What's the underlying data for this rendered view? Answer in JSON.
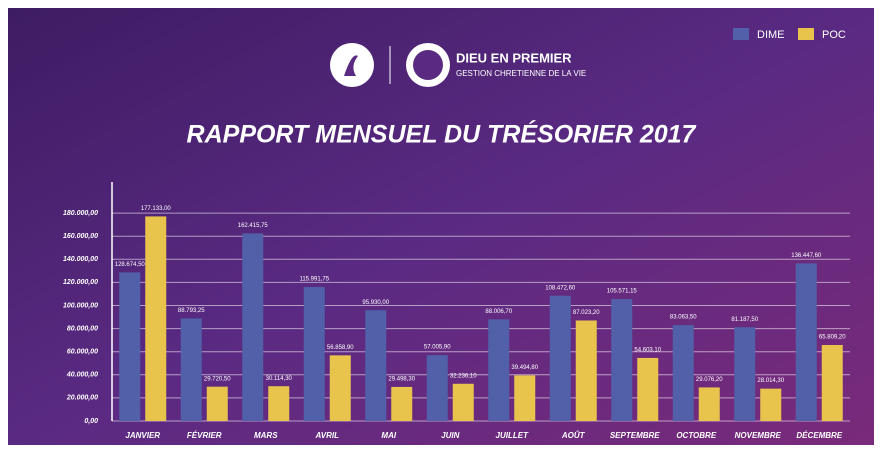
{
  "chart_data": {
    "type": "bar",
    "title": "RAPPORT MENSUEL DU TRÉSORIER 2017",
    "annotations": [
      "DIEU EN PREMIER",
      "GESTION CHRETIENNE DE LA VIE"
    ],
    "categories": [
      "JANVIER",
      "FÉVRIER",
      "MARS",
      "AVRIL",
      "MAI",
      "JUIN",
      "JUILLET",
      "AOÛT",
      "SEPTEMBRE",
      "OCTOBRE",
      "NOVEMBRE",
      "DÉCEMBRE"
    ],
    "series": [
      {
        "name": "DIME",
        "color": "#5160a8",
        "values": [
          128674.5,
          88793.25,
          162415.75,
          115991.75,
          95930,
          57005.9,
          88006.7,
          108472.6,
          105571.15,
          83063.5,
          81187.5,
          136447.6
        ],
        "value_labels": [
          "128.674,50",
          "88.793,25",
          "162.415,75",
          "115.991,75",
          "95.930,00",
          "57.005,90",
          "88.006,70",
          "108.472,60",
          "105.571,15",
          "83.063,50",
          "81.187,50",
          "136.447,60"
        ]
      },
      {
        "name": "POC",
        "color": "#e9c44d",
        "values": [
          177133,
          29720.5,
          30114.3,
          56858.9,
          29498.3,
          32236.1,
          39494.8,
          87023.2,
          54603.1,
          29076.2,
          28014.3,
          65809.2
        ],
        "value_labels": [
          "177.133,00",
          "29.720,50",
          "30.114,30",
          "56.858,90",
          "29.498,30",
          "32.236,10",
          "39.494,80",
          "87.023,20",
          "54.603,10",
          "29.076,20",
          "28.014,30",
          "65.809,20"
        ]
      }
    ],
    "ylim": [
      0,
      200000
    ],
    "yticks": [
      {
        "value": 0,
        "label": "0,00"
      },
      {
        "value": 20000,
        "label": "20.000,00"
      },
      {
        "value": 40000,
        "label": "40.000,00"
      },
      {
        "value": 60000,
        "label": "60.000,00"
      },
      {
        "value": 80000,
        "label": "80.000,00"
      },
      {
        "value": 100000,
        "label": "100.000,00"
      },
      {
        "value": 120000,
        "label": "120.000,00"
      },
      {
        "value": 140000,
        "label": "140.000,00"
      },
      {
        "value": 160000,
        "label": "160.000,00"
      },
      {
        "value": 180000,
        "label": "180.000,00"
      }
    ],
    "grid": true,
    "legend": "top-right"
  }
}
